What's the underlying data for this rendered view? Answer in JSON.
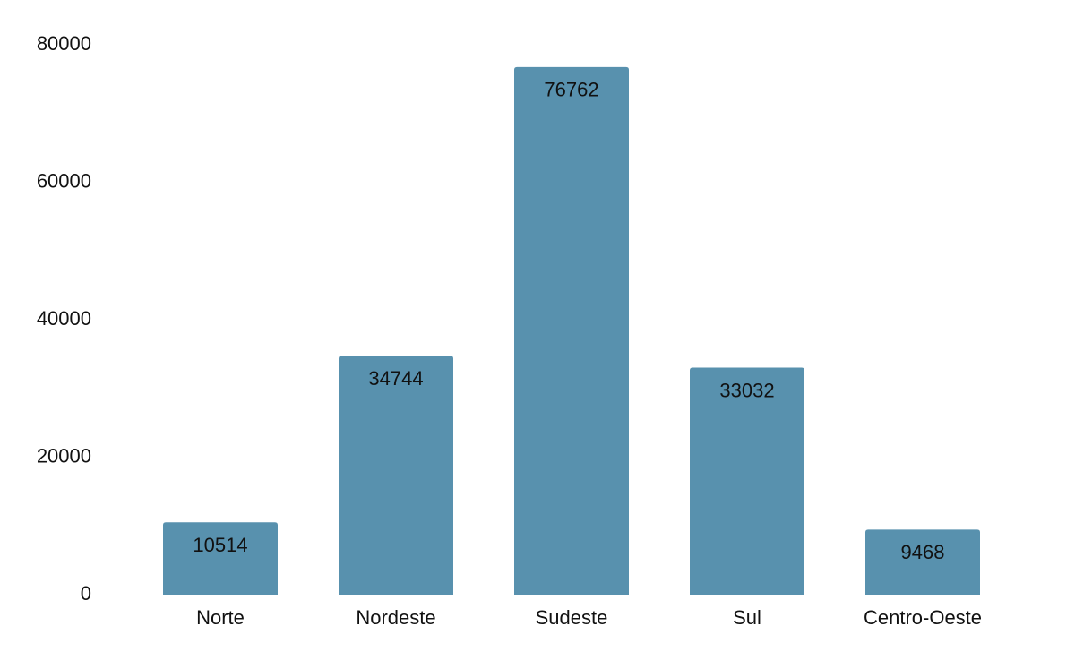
{
  "chart_data": {
    "type": "bar",
    "title": "",
    "xlabel": "",
    "ylabel": "",
    "categories": [
      "Norte",
      "Nordeste",
      "Sudeste",
      "Sul",
      "Centro-Oeste"
    ],
    "values": [
      10514,
      34744,
      76762,
      33032,
      9468
    ],
    "ylim": [
      0,
      80000
    ],
    "yticks": [
      0,
      20000,
      40000,
      60000,
      80000
    ],
    "bar_color": "#5891ae",
    "grid": false,
    "legend": "none",
    "value_labels": "inside-top"
  }
}
